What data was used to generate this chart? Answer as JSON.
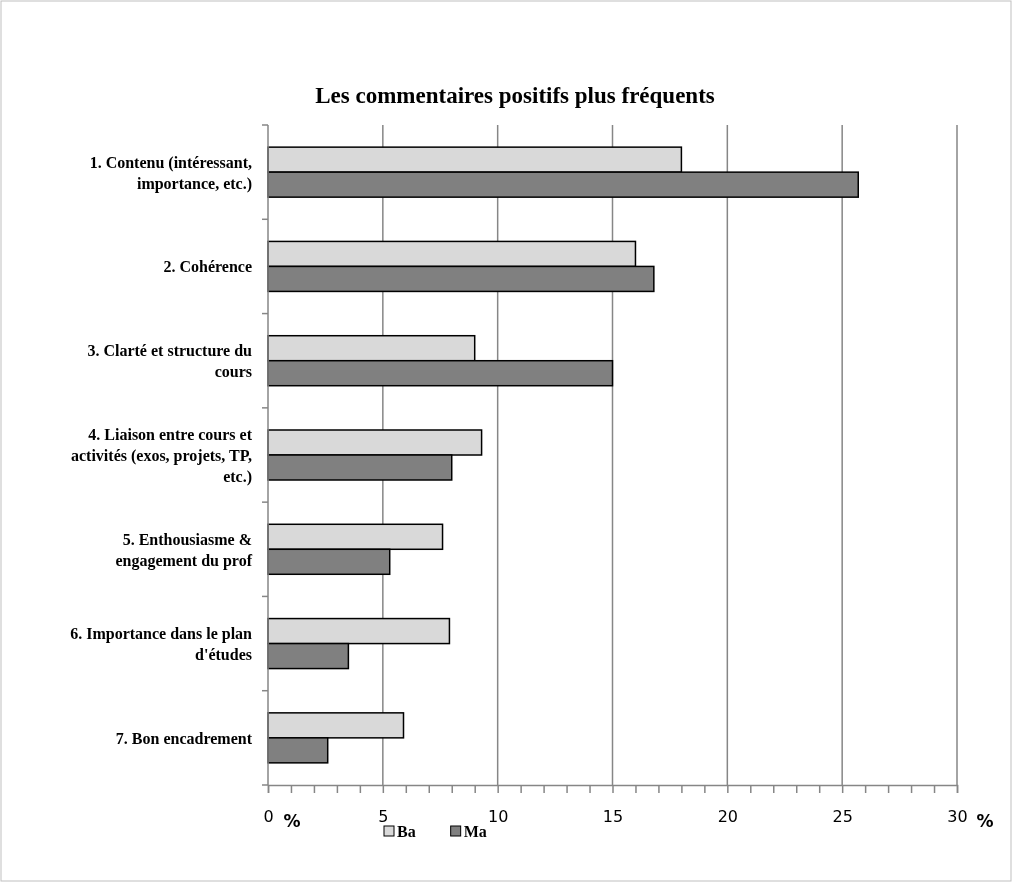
{
  "chart_data": {
    "type": "bar",
    "orientation": "horizontal",
    "title": "Les commentaires positifs plus fréquents",
    "categories": [
      "1. Contenu (intéressant, importance, etc.)",
      "2. Cohérence",
      "3. Clarté et structure du cours",
      "4. Liaison entre cours et activités (exos, projets, TP, etc.)",
      "5. Enthousiasme & engagement du prof",
      "6. Importance dans le plan d'études",
      "7. Bon encadrement"
    ],
    "series": [
      {
        "name": "Ba",
        "color": "#d9d9d9",
        "values": [
          18.0,
          16.0,
          9.0,
          9.3,
          7.6,
          7.9,
          5.9
        ]
      },
      {
        "name": "Ma",
        "color": "#808080",
        "values": [
          25.7,
          16.8,
          15.0,
          8.0,
          5.3,
          3.5,
          2.6
        ]
      }
    ],
    "xlim": [
      0,
      30
    ],
    "xticks": [
      0,
      {
        "value": 1,
        "label": null
      },
      {
        "value": 2,
        "label": null
      },
      {
        "value": 3,
        "label": null
      },
      {
        "value": 4,
        "label": null
      },
      5,
      {
        "value": 6,
        "label": null
      },
      {
        "value": 7,
        "label": null
      },
      {
        "value": 8,
        "label": null
      },
      {
        "value": 9,
        "label": null
      },
      10,
      {
        "value": 11,
        "label": null
      },
      {
        "value": 12,
        "label": null
      },
      {
        "value": 13,
        "label": null
      },
      {
        "value": 14,
        "label": null
      },
      15,
      {
        "value": 16,
        "label": null
      },
      {
        "value": 17,
        "label": null
      },
      {
        "value": 18,
        "label": null
      },
      {
        "value": 19,
        "label": null
      },
      20,
      {
        "value": 21,
        "label": null
      },
      {
        "value": 22,
        "label": null
      },
      {
        "value": 23,
        "label": null
      },
      {
        "value": 24,
        "label": null
      },
      25,
      {
        "value": 26,
        "label": null
      },
      {
        "value": 27,
        "label": null
      },
      {
        "value": 28,
        "label": null
      },
      {
        "value": 29,
        "label": null
      },
      30
    ],
    "grid": "x",
    "legend": "bottom",
    "annotations": [
      "%",
      "%"
    ]
  }
}
